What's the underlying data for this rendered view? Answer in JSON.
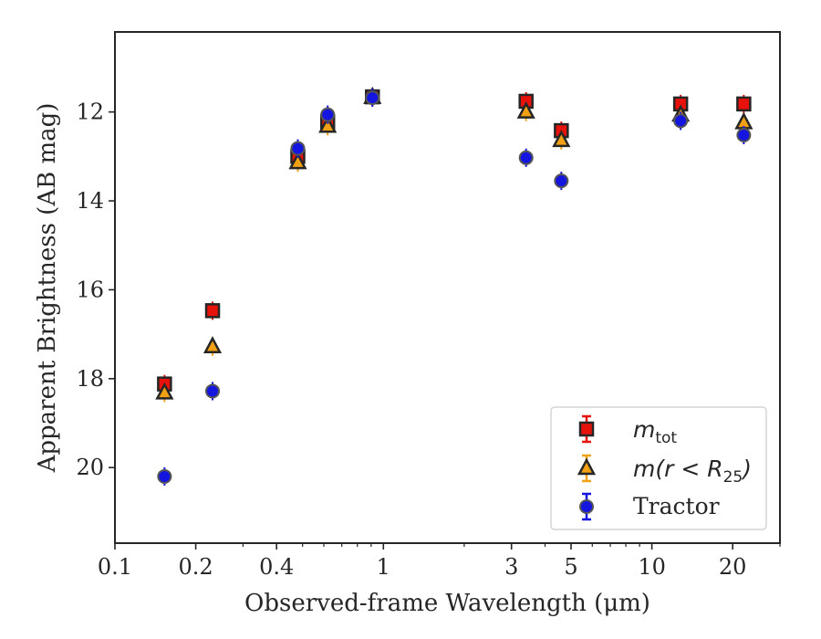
{
  "chart_data": {
    "type": "scatter",
    "title": "",
    "xlabel": "Observed-frame Wavelength (μm)",
    "ylabel": "Apparent Brightness (AB mag)",
    "x_scale": "log",
    "xlim": [
      0.1,
      30
    ],
    "ylim": [
      21.7,
      10.2
    ],
    "y_inverted": true,
    "x_ticks": [
      0.1,
      0.2,
      0.4,
      1,
      3,
      5,
      10,
      20
    ],
    "x_tick_labels": [
      "0.1",
      "0.2",
      "0.4",
      "1",
      "3",
      "5",
      "10",
      "20"
    ],
    "y_ticks": [
      12,
      14,
      16,
      18,
      20
    ],
    "y_tick_labels": [
      "12",
      "14",
      "16",
      "18",
      "20"
    ],
    "grid": false,
    "legend_position": "bottom-right",
    "series": [
      {
        "name": "m_tot",
        "legend_main": "m",
        "legend_sub": "tot",
        "marker": "square",
        "color": "#e8120c",
        "points": [
          {
            "x": 0.153,
            "y": 18.12
          },
          {
            "x": 0.231,
            "y": 16.47
          },
          {
            "x": 0.48,
            "y": 13.0
          },
          {
            "x": 0.62,
            "y": 12.22
          },
          {
            "x": 0.91,
            "y": 11.66
          },
          {
            "x": 3.4,
            "y": 11.76
          },
          {
            "x": 4.6,
            "y": 12.42
          },
          {
            "x": 12.8,
            "y": 11.82
          },
          {
            "x": 22.0,
            "y": 11.82
          }
        ]
      },
      {
        "name": "m(r < R25)",
        "legend_main": "m(r < R",
        "legend_sub": "25",
        "legend_tail": ")",
        "marker": "triangle",
        "color": "#f2a014",
        "points": [
          {
            "x": 0.153,
            "y": 18.32
          },
          {
            "x": 0.231,
            "y": 17.28
          },
          {
            "x": 0.48,
            "y": 13.14
          },
          {
            "x": 0.62,
            "y": 12.32
          },
          {
            "x": 0.91,
            "y": 11.67
          },
          {
            "x": 3.4,
            "y": 12.0
          },
          {
            "x": 4.6,
            "y": 12.64
          },
          {
            "x": 12.8,
            "y": 12.07
          },
          {
            "x": 22.0,
            "y": 12.24
          }
        ]
      },
      {
        "name": "Tractor",
        "legend_main": "Tractor",
        "marker": "circle",
        "color": "#1515e0",
        "points": [
          {
            "x": 0.153,
            "y": 20.2
          },
          {
            "x": 0.231,
            "y": 18.28
          },
          {
            "x": 0.48,
            "y": 12.82
          },
          {
            "x": 0.62,
            "y": 12.06
          },
          {
            "x": 0.91,
            "y": 11.68
          },
          {
            "x": 3.4,
            "y": 13.03
          },
          {
            "x": 4.6,
            "y": 13.55
          },
          {
            "x": 12.8,
            "y": 12.2
          },
          {
            "x": 22.0,
            "y": 12.52
          }
        ]
      }
    ]
  }
}
